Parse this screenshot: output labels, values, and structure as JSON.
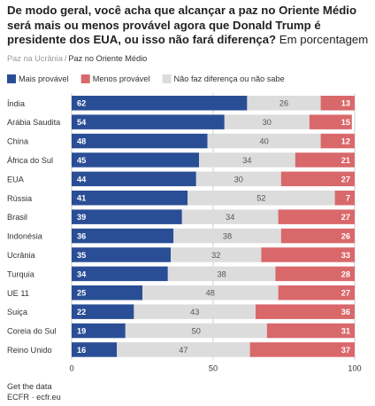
{
  "title": {
    "main": "De modo geral, você acha que alcançar a paz no Oriente Médio será mais ou menos provável agora que Donald Trump é presidente dos EUA, ou isso não fará diferença?",
    "unit": "Em porcentagem"
  },
  "tabs": [
    "Paz na Ucrânia",
    "Paz no Oriente Médio"
  ],
  "tab_separator": "/",
  "active_tab": 1,
  "footer": {
    "link": "Get the data",
    "source": "ECFR · ecfr.eu"
  },
  "colors": {
    "mais": "#2a4e96",
    "menos": "#d9686b",
    "nao": "#dcdcdc",
    "grid": "#cccccc"
  },
  "chart_data": {
    "type": "bar",
    "orientation": "horizontal",
    "stacked": true,
    "categories": [
      "Índia",
      "Arábia Saudita",
      "China",
      "África do Sul",
      "EUA",
      "Rússia",
      "Brasil",
      "Indonésia",
      "Ucrânia",
      "Turquia",
      "UE 11",
      "Suiça",
      "Coreia do Sul",
      "Reino Unido"
    ],
    "series": [
      {
        "name": "Mais provável",
        "color": "#2a4e96",
        "values": [
          62,
          54,
          48,
          45,
          44,
          41,
          39,
          36,
          35,
          34,
          25,
          22,
          19,
          16
        ]
      },
      {
        "name": "Não faz diferença ou não sabe",
        "color": "#dcdcdc",
        "values": [
          26,
          30,
          40,
          34,
          30,
          52,
          34,
          38,
          32,
          38,
          48,
          43,
          50,
          47
        ]
      },
      {
        "name": "Menos provável",
        "color": "#d9686b",
        "values": [
          13,
          15,
          12,
          21,
          27,
          7,
          27,
          26,
          33,
          28,
          27,
          36,
          31,
          37
        ]
      }
    ],
    "legend": [
      "Mais provável",
      "Menos provável",
      "Não faz diferença ou não sabe"
    ],
    "xlim": [
      0,
      100
    ],
    "xticks": [
      0,
      50,
      100
    ],
    "legend_position": "top-left",
    "grid": true
  }
}
